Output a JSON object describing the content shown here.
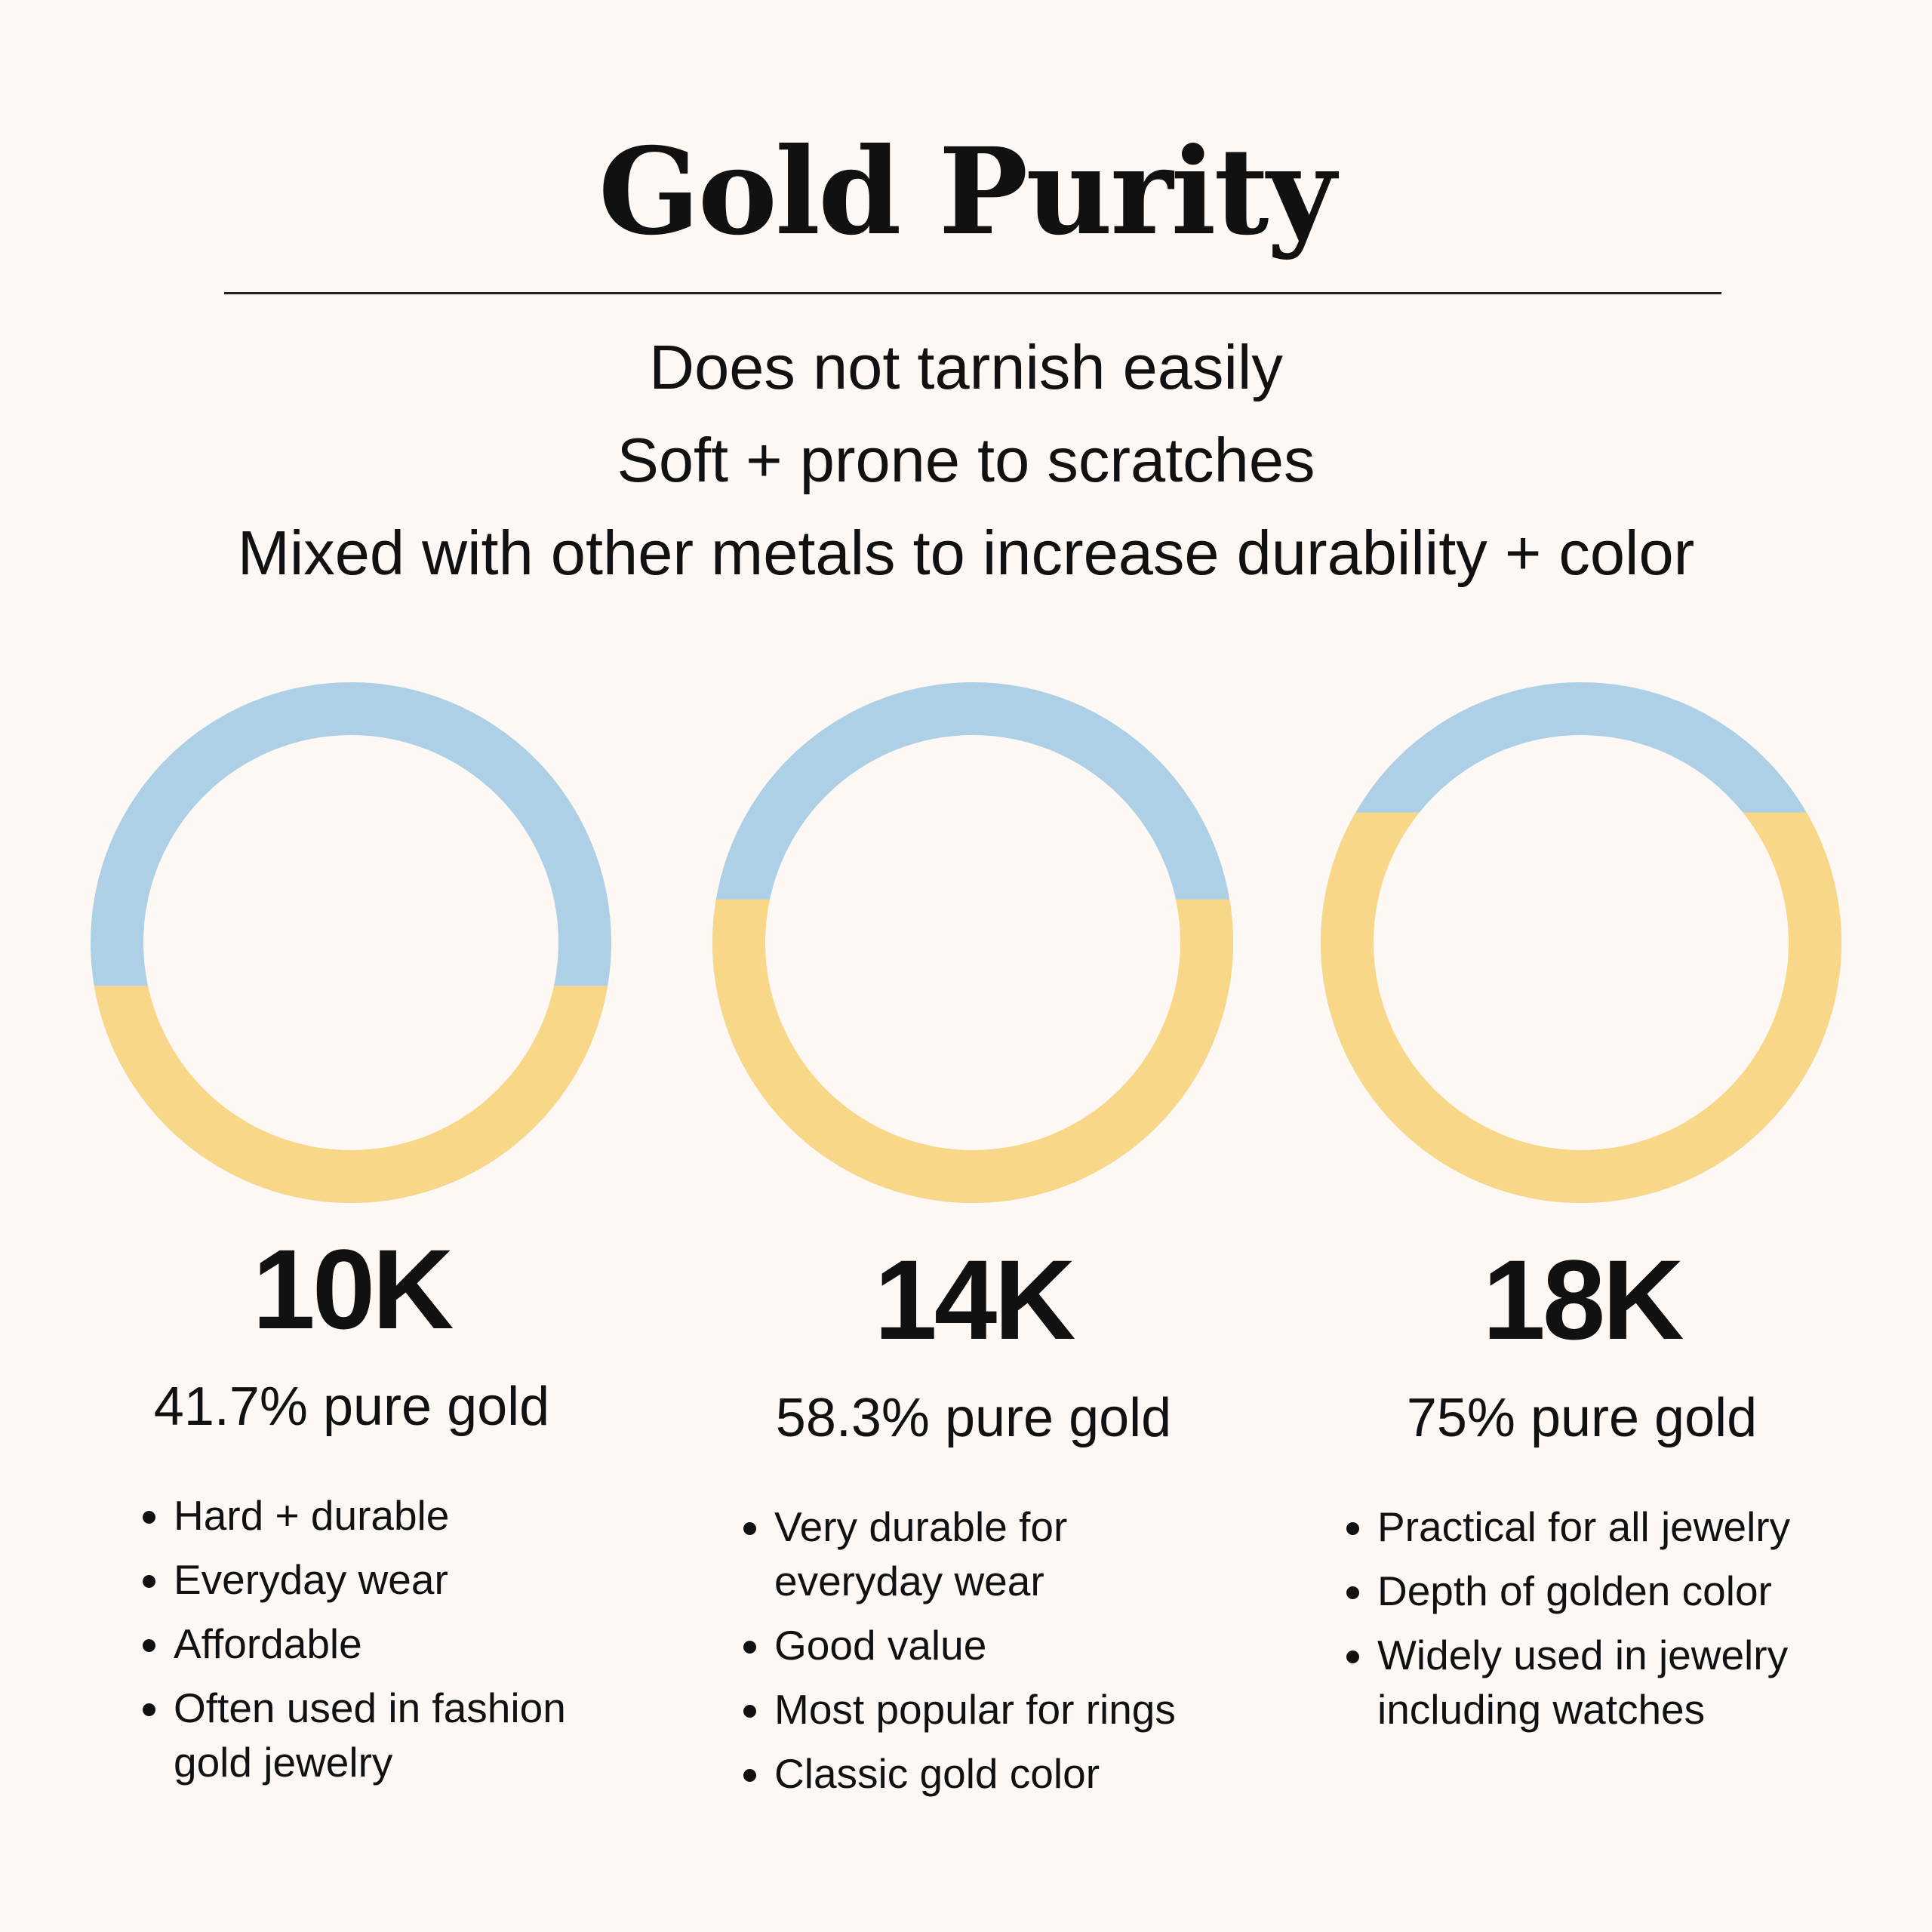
{
  "title": "Gold Purity",
  "intro": [
    "Does not tarnish easily",
    "Soft + prone to scratches",
    "Mixed with other metals to increase durability + color"
  ],
  "colors": {
    "gold": "#f8d788",
    "other_metal": "#add0e6",
    "background": "#fdf8f3",
    "text": "#111111"
  },
  "chart_data": {
    "type": "pie",
    "series_labels": [
      "pure gold",
      "other metals"
    ],
    "rings": [
      {
        "karat": "10K",
        "gold_percent": 41.7,
        "purity_label": "41.7% pure gold",
        "features": [
          "Hard + durable",
          "Everyday wear",
          "Affordable",
          "Often used in fashion gold jewelry"
        ]
      },
      {
        "karat": "14K",
        "gold_percent": 58.3,
        "purity_label": "58.3% pure gold",
        "features": [
          "Very durable for everyday wear",
          "Good value",
          "Most popular for rings",
          "Classic gold color"
        ]
      },
      {
        "karat": "18K",
        "gold_percent": 75,
        "purity_label": "75% pure gold",
        "features": [
          "Practical for all jewelry",
          "Depth of golden color",
          "Widely used in jewelry including watches"
        ]
      }
    ]
  }
}
